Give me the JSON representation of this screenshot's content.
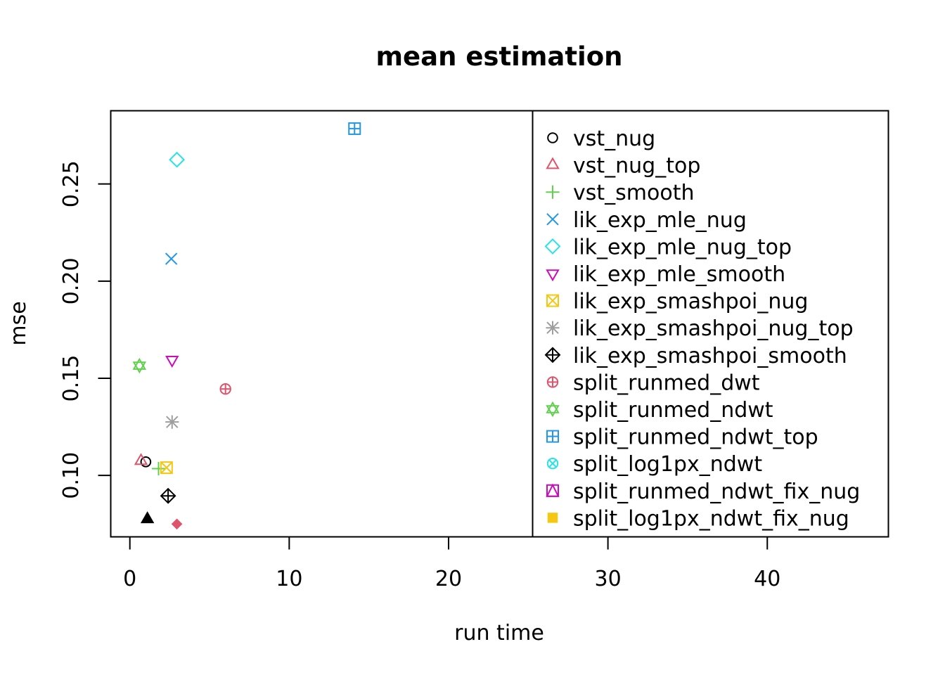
{
  "chart_data": {
    "type": "scatter",
    "title": "mean estimation",
    "xlabel": "run time",
    "ylabel": "mse",
    "xlim": [
      -1.2,
      47.6
    ],
    "ylim": [
      0.0684,
      0.2877
    ],
    "xticks": [
      0,
      10,
      20,
      30,
      40
    ],
    "xtick_labels": [
      "0",
      "10",
      "20",
      "30",
      "40"
    ],
    "yticks": [
      0.1,
      0.15,
      0.2,
      0.25
    ],
    "ytick_labels": [
      "0.10",
      "0.15",
      "0.20",
      "0.25"
    ],
    "grid": false,
    "legend_position": "top-right",
    "series": [
      {
        "name": "vst_nug",
        "color": "#000000",
        "pch": 1,
        "x": 1.0,
        "y": 0.107
      },
      {
        "name": "vst_nug_top",
        "color": "#DF536B",
        "pch": 2,
        "x": 0.7,
        "y": 0.1075
      },
      {
        "name": "vst_smooth",
        "color": "#61D04F",
        "pch": 3,
        "x": 1.8,
        "y": 0.1035
      },
      {
        "name": "lik_exp_mle_nug",
        "color": "#2297E6",
        "pch": 4,
        "x": 2.6,
        "y": 0.2115
      },
      {
        "name": "lik_exp_mle_nug_top",
        "color": "#28E2E5",
        "pch": 5,
        "x": 2.95,
        "y": 0.2625
      },
      {
        "name": "lik_exp_mle_smooth",
        "color": "#CD0BBC",
        "pch": 6,
        "x": 2.65,
        "y": 0.1595
      },
      {
        "name": "lik_exp_smashpoi_nug",
        "color": "#F5C710",
        "pch": 7,
        "x": 2.3,
        "y": 0.104
      },
      {
        "name": "lik_exp_smashpoi_nug_top",
        "color": "#9E9E9E",
        "pch": 8,
        "x": 2.65,
        "y": 0.1275
      },
      {
        "name": "lik_exp_smashpoi_smooth",
        "color": "#000000",
        "pch": 9,
        "x": 2.4,
        "y": 0.0895
      },
      {
        "name": "split_runmed_dwt",
        "color": "#DF536B",
        "pch": 10,
        "x": 6.0,
        "y": 0.1445
      },
      {
        "name": "split_runmed_ndwt",
        "color": "#61D04F",
        "pch": 11,
        "x": 0.6,
        "y": 0.1565
      },
      {
        "name": "split_runmed_ndwt_top",
        "color": "#2297E6",
        "pch": 12,
        "x": 14.1,
        "y": 0.2785
      },
      {
        "name": "split_log1px_ndwt",
        "color": "#28E2E5",
        "pch": 13,
        "x": null,
        "y": null
      },
      {
        "name": "split_runmed_ndwt_fix_nug",
        "color": "#CD0BBC",
        "pch": 14,
        "x": null,
        "y": null
      },
      {
        "name": "split_log1px_ndwt_fix_nug",
        "color": "#F5C710",
        "pch": 15,
        "x": null,
        "y": null
      },
      {
        "name": "",
        "color": "#9E9E9E",
        "pch": 16,
        "x": null,
        "y": null
      },
      {
        "name": "",
        "color": "#000000",
        "pch": 17,
        "x": 1.1,
        "y": 0.0775
      },
      {
        "name": "",
        "color": "#DF536B",
        "pch": 18,
        "x": 2.95,
        "y": 0.075
      }
    ]
  }
}
